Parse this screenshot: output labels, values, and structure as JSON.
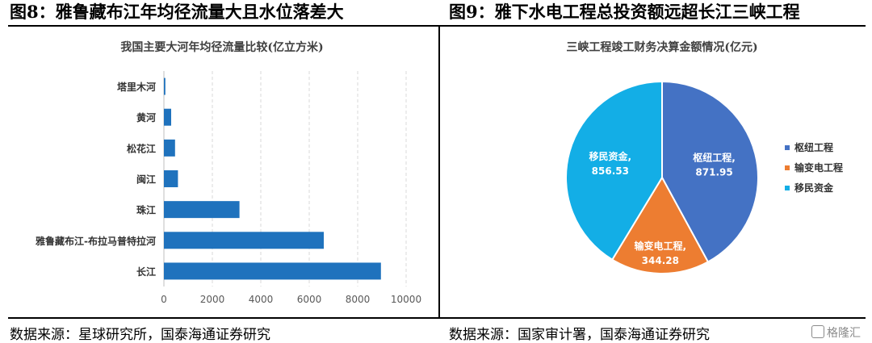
{
  "left_panel": {
    "figure_title": "图8：雅鲁藏布江年均径流量大且水位落差大",
    "source": "数据来源：星球研究所，国泰海通证券研究"
  },
  "right_panel": {
    "figure_title": "图9：雅下水电工程总投资额远超长江三峡工程",
    "source": "数据来源：国家审计署，国泰海通证券研究"
  },
  "watermark": "格隆汇",
  "colors": {
    "bar": "#1f72bd",
    "slice1": "#4472c4",
    "slice2": "#ed7d31",
    "slice3": "#13aee6"
  },
  "chart_data": [
    {
      "type": "bar",
      "orientation": "horizontal",
      "title": "我国主要大河年均径流量比较(亿立方米)",
      "categories": [
        "塔里木河",
        "黄河",
        "松花江",
        "闽江",
        "珠江",
        "雅鲁藏布江-布拉马普特拉河",
        "长江"
      ],
      "values": [
        60,
        300,
        460,
        580,
        3120,
        6600,
        8960
      ],
      "xlim": [
        0,
        10000
      ],
      "xticks": [
        0,
        2000,
        4000,
        6000,
        8000,
        10000
      ],
      "grid": "vertical dashed"
    },
    {
      "type": "pie",
      "title": "三峡工程竣工财务决算金额情况(亿元)",
      "labels": [
        "枢纽工程",
        "输变电工程",
        "移民资金"
      ],
      "values": [
        871.95,
        344.28,
        856.53
      ],
      "value_labels": [
        "871.95",
        "344.28",
        "856.53"
      ],
      "legend": "right",
      "colors": [
        "#4472c4",
        "#ed7d31",
        "#13aee6"
      ]
    }
  ]
}
